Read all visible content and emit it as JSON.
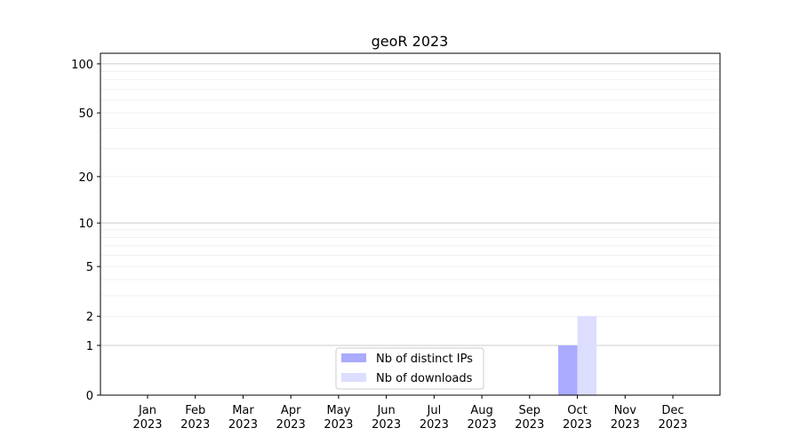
{
  "chart_data": {
    "type": "bar",
    "title": "geoR 2023",
    "xlabel": "",
    "ylabel": "",
    "y_scale": "log(1+y)",
    "ylim": [
      0,
      116
    ],
    "y_ticks": [
      0,
      1,
      2,
      5,
      10,
      20,
      50,
      100
    ],
    "y_tick_labels": [
      "0",
      "1",
      "2",
      "5",
      "10",
      "20",
      "50",
      "100"
    ],
    "grid": true,
    "legend_position": "bottom-center",
    "categories": [
      "Jan\n2023",
      "Feb\n2023",
      "Mar\n2023",
      "Apr\n2023",
      "May\n2023",
      "Jun\n2023",
      "Jul\n2023",
      "Aug\n2023",
      "Sep\n2023",
      "Oct\n2023",
      "Nov\n2023",
      "Dec\n2023"
    ],
    "series": [
      {
        "name": "Nb of distinct IPs",
        "color": "#aaaaff",
        "values": [
          0,
          0,
          0,
          0,
          0,
          0,
          0,
          0,
          0,
          1,
          0,
          0
        ]
      },
      {
        "name": "Nb of downloads",
        "color": "#ddddff",
        "values": [
          0,
          0,
          0,
          0,
          0,
          0,
          0,
          0,
          0,
          2,
          0,
          0
        ]
      }
    ]
  }
}
